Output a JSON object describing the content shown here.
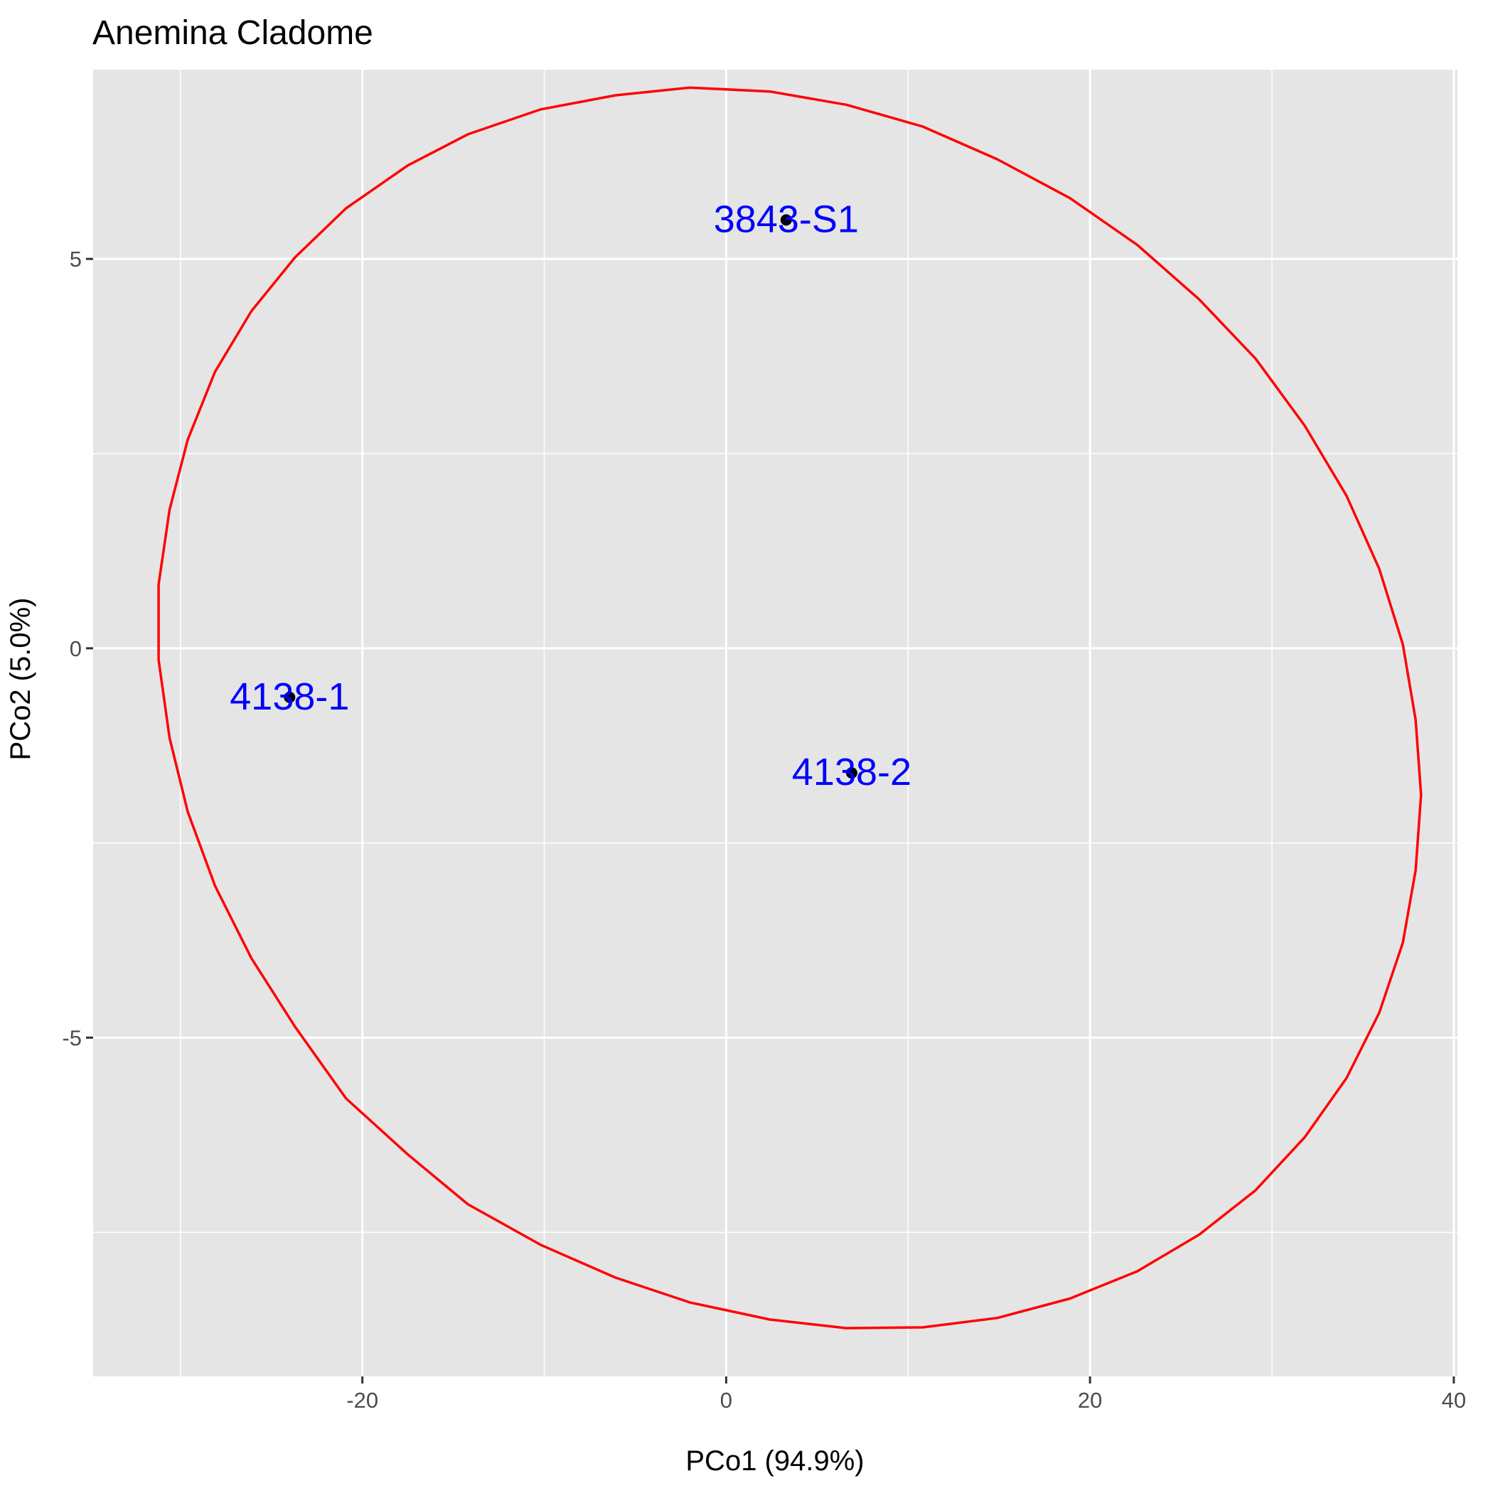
{
  "chart_data": {
    "type": "scatter",
    "title": "Anemina Cladome",
    "xlabel": "PCo1 (94.9%)",
    "ylabel": "PCo2 (5.0%)",
    "xlim": [
      -34.8,
      40.2
    ],
    "ylim": [
      -9.35,
      7.43
    ],
    "xticks": [
      -20,
      0,
      20,
      40
    ],
    "yticks": [
      -5,
      0,
      5
    ],
    "xtick_labels": [
      "-20",
      "0",
      "20",
      "40"
    ],
    "ytick_labels": [
      "-5",
      "0",
      "5"
    ],
    "grid": true,
    "points": [
      {
        "x": 3.3,
        "y": 5.5,
        "label": "3843-S1"
      },
      {
        "x": -24.0,
        "y": -0.63,
        "label": "4138-1"
      },
      {
        "x": 6.9,
        "y": -1.6,
        "label": "4138-2"
      }
    ],
    "ellipse": {
      "x": [
        -2.0,
        2.4,
        6.6,
        10.8,
        14.9,
        18.9,
        22.6,
        26.0,
        29.1,
        31.8,
        34.1,
        35.9,
        37.2,
        37.9,
        38.2,
        37.9,
        37.2,
        35.9,
        34.1,
        31.8,
        29.1,
        26.0,
        22.6,
        18.9,
        14.9,
        10.8,
        6.6,
        2.4,
        -2.0,
        -6.1,
        -10.2,
        -14.2,
        -17.5,
        -20.9,
        -23.7,
        -26.1,
        -28.1,
        -29.6,
        -30.6,
        -31.2,
        -31.2,
        -30.6,
        -29.6,
        -28.1,
        -26.1,
        -23.7,
        -20.9,
        -17.5,
        -14.2,
        -10.2,
        -6.1,
        -2.0
      ],
      "y": [
        7.2,
        7.15,
        6.98,
        6.7,
        6.28,
        5.78,
        5.18,
        4.48,
        3.72,
        2.86,
        1.96,
        1.02,
        0.05,
        -0.92,
        -1.88,
        -2.85,
        -3.78,
        -4.68,
        -5.52,
        -6.28,
        -6.96,
        -7.53,
        -8.0,
        -8.35,
        -8.6,
        -8.72,
        -8.73,
        -8.62,
        -8.4,
        -8.08,
        -7.66,
        -7.14,
        -6.5,
        -5.78,
        -4.86,
        -3.98,
        -3.05,
        -2.1,
        -1.15,
        -0.15,
        0.82,
        1.78,
        2.68,
        3.55,
        4.33,
        5.02,
        5.65,
        6.2,
        6.6,
        6.92,
        7.1,
        7.2
      ]
    },
    "colors": {
      "panel": "#e5e5e5",
      "grid": "#ffffff",
      "ellipse": "#ff0000",
      "point": "#000000",
      "point_label": "#0000ff",
      "tick": "#4d4d4d"
    }
  }
}
